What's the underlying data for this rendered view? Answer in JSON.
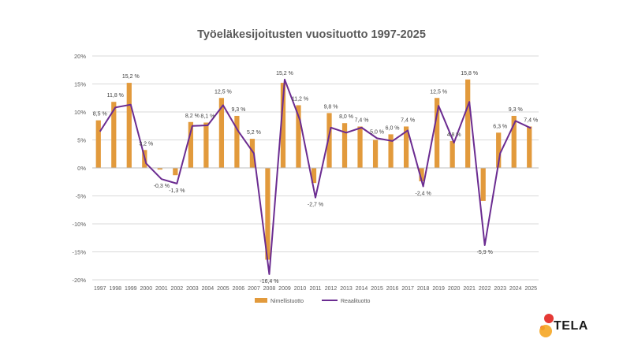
{
  "chart_data": {
    "type": "bar",
    "title": "Työeläkesijoitusten vuosituotto 1997-2025",
    "categories": [
      "1997",
      "1998",
      "1999",
      "2000",
      "2001",
      "2002",
      "2003",
      "2004",
      "2005",
      "2006",
      "2007",
      "2008",
      "2009",
      "2010",
      "2011",
      "2012",
      "2013",
      "2014",
      "2015",
      "2016",
      "2017",
      "2018",
      "2019",
      "2020",
      "2021",
      "2022",
      "2023",
      "2024",
      "2025"
    ],
    "series": [
      {
        "name": "Nimellistuotto",
        "type": "bar",
        "color": "#E29A3C",
        "values": [
          8.5,
          11.8,
          15.2,
          3.2,
          -0.3,
          -1.3,
          8.2,
          8.1,
          12.5,
          9.3,
          5.2,
          -16.4,
          15.2,
          11.2,
          -2.7,
          9.8,
          8.0,
          7.4,
          5.0,
          6.0,
          7.4,
          -2.4,
          12.5,
          4.8,
          15.8,
          -5.9,
          6.3,
          9.3,
          7.4
        ],
        "labels": [
          "8,5 %",
          "11,8 %",
          "15,2 %",
          "3,2 %",
          "-0,3 %",
          "-1,3 %",
          "8,2 %",
          "8,1 %",
          "12,5 %",
          "9,3 %",
          "5,2 %",
          "-16,4 %",
          "15,2 %",
          "11,2 %",
          "-2,7 %",
          "9,8 %",
          "8,0 %",
          "7,4 %",
          "5,0 %",
          "6,0 %",
          "7,4 %",
          "-2,4 %",
          "12,5 %",
          "4,8 %",
          "15,8 %",
          "-5,9 %",
          "6,3 %",
          "9,3 %",
          "7,4 %"
        ]
      },
      {
        "name": "Reaalituotto",
        "type": "line",
        "color": "#6B2C91",
        "values": [
          6.5,
          10.8,
          11.3,
          0.8,
          -2.0,
          -2.8,
          7.5,
          7.6,
          11.2,
          6.5,
          2.6,
          -19.0,
          15.8,
          8.5,
          -5.3,
          7.2,
          6.3,
          7.2,
          5.3,
          4.8,
          6.7,
          -3.3,
          11.1,
          4.5,
          11.8,
          -13.8,
          2.6,
          8.4,
          7.1
        ]
      }
    ],
    "ylim": [
      -20,
      20
    ],
    "yticks": [
      -20,
      -15,
      -10,
      -5,
      0,
      5,
      10,
      15,
      20
    ],
    "ytick_labels": [
      "-20%",
      "-15%",
      "-10%",
      "-5%",
      "0%",
      "5%",
      "10%",
      "15%",
      "20%"
    ],
    "grid": true,
    "legend_position": "bottom"
  },
  "logo": {
    "text": "TELA",
    "colors": [
      "#E53935",
      "#F5A623"
    ]
  }
}
